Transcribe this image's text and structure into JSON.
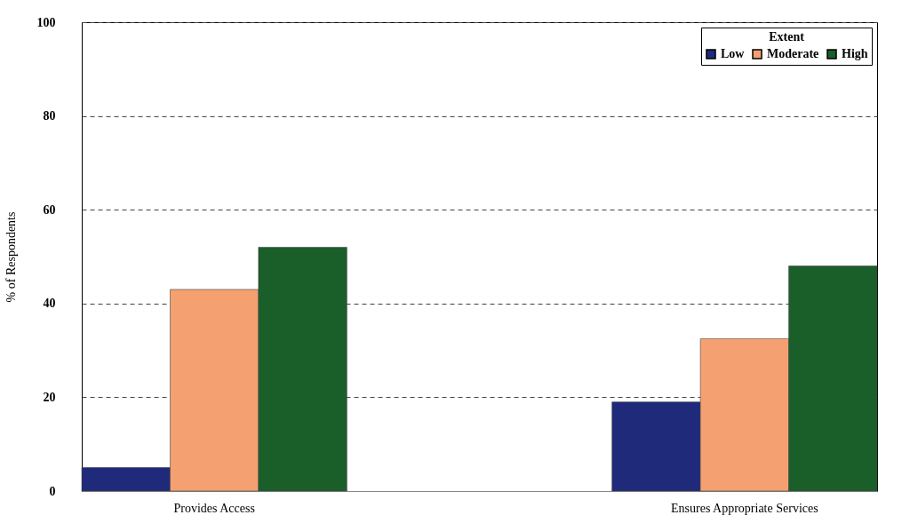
{
  "chart_data": {
    "type": "bar",
    "ylabel": "% of Respondents",
    "legend_title": "Extent",
    "categories": [
      "Provides Access",
      "Ensures Appropriate Services"
    ],
    "series": [
      {
        "name": "Low",
        "color": "#1f2a7a",
        "values": [
          5,
          19
        ]
      },
      {
        "name": "Moderate",
        "color": "#f4a070",
        "values": [
          43,
          32.5
        ]
      },
      {
        "name": "High",
        "color": "#1a5e2a",
        "values": [
          52,
          48
        ]
      }
    ],
    "ylim": [
      0,
      100
    ],
    "yticks": [
      0,
      20,
      40,
      60,
      80,
      100
    ],
    "grid": "y",
    "legend": "top right"
  }
}
